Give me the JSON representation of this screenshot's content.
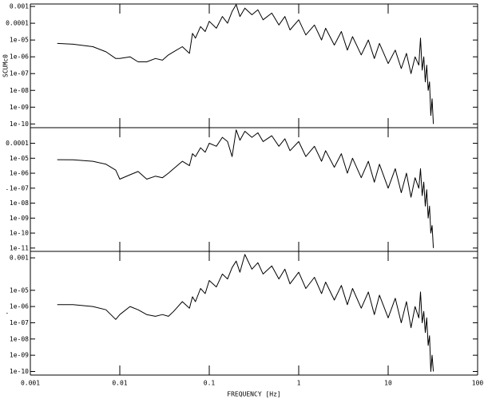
{
  "chart_data": [
    {
      "type": "line",
      "ylabel": "SCUMc0",
      "log_x": true,
      "log_y": true,
      "xlim": [
        0.001,
        100
      ],
      "xticks": [
        0.001,
        0.01,
        0.1,
        1,
        10,
        100
      ],
      "ylim": [
        6e-11,
        0.0014
      ],
      "yticks": [
        0.001,
        0.0001,
        {
          "value": 1e-05,
          "label": "1e-05"
        },
        {
          "value": 1e-06,
          "label": "1e-06"
        },
        {
          "value": 1e-07,
          "label": "1e-07"
        },
        {
          "value": 1e-08,
          "label": "1e-08"
        },
        {
          "value": 1e-09,
          "label": "1e-09"
        },
        {
          "value": 1e-10,
          "label": "1e-10"
        }
      ],
      "x": [
        0.002,
        0.003,
        0.005,
        0.007,
        0.009,
        0.01,
        0.013,
        0.016,
        0.02,
        0.025,
        0.03,
        0.035,
        0.04,
        0.05,
        0.06,
        0.065,
        0.07,
        0.08,
        0.09,
        0.1,
        0.12,
        0.14,
        0.16,
        0.18,
        0.2,
        0.22,
        0.25,
        0.3,
        0.35,
        0.4,
        0.5,
        0.6,
        0.7,
        0.8,
        1,
        1.2,
        1.5,
        1.8,
        2,
        2.5,
        3,
        3.5,
        4,
        5,
        6,
        7,
        8,
        10,
        12,
        14,
        16,
        18,
        20,
        22,
        23,
        24,
        25,
        26,
        27,
        28,
        29,
        30,
        31,
        32
      ],
      "series": [
        {
          "color": "#000000",
          "values": [
            6.3e-06,
            5.6e-06,
            4e-06,
            2e-06,
            7.9e-07,
            7.9e-07,
            1e-06,
            5e-07,
            5e-07,
            7.9e-07,
            6.3e-07,
            1.3e-06,
            2e-06,
            4e-06,
            1.6e-06,
            2.5e-05,
            1.3e-05,
            6.3e-05,
            3.2e-05,
            0.00013,
            5e-05,
            0.00025,
            0.0001,
            0.0005,
            0.0013,
            0.00025,
            0.00079,
            0.00032,
            0.00063,
            0.00016,
            0.0004,
            7.9e-05,
            0.00025,
            4e-05,
            0.00016,
            2e-05,
            7.9e-05,
            1e-05,
            5e-05,
            5e-06,
            3.2e-05,
            2.5e-06,
            1.6e-05,
            1.3e-06,
            1e-05,
            7.9e-07,
            6.3e-06,
            4e-07,
            2.5e-06,
            2e-07,
            1.6e-06,
            1e-07,
            1e-06,
            3.2e-07,
            1.3e-05,
            1.6e-07,
            1e-06,
            3.2e-08,
            3.2e-07,
            1e-08,
            3.2e-08,
            3.2e-10,
            3.2e-09,
            1e-10
          ]
        }
      ]
    },
    {
      "type": "line",
      "ylabel": ".",
      "log_x": true,
      "log_y": true,
      "xlim": [
        0.001,
        100
      ],
      "xticks": [
        0.001,
        0.01,
        0.1,
        1,
        10,
        100
      ],
      "ylim": [
        6e-12,
        0.0011
      ],
      "yticks": [
        0.0001,
        {
          "value": 1e-05,
          "label": "1e-05"
        },
        {
          "value": 1e-06,
          "label": "1e-06"
        },
        {
          "value": 1e-07,
          "label": "1e-07"
        },
        {
          "value": 1e-08,
          "label": "1e-08"
        },
        {
          "value": 1e-09,
          "label": "1e-09"
        },
        {
          "value": 1e-10,
          "label": "1e-10"
        },
        {
          "value": 1e-11,
          "label": "1e-11"
        }
      ],
      "x": [
        0.002,
        0.003,
        0.005,
        0.007,
        0.009,
        0.01,
        0.013,
        0.016,
        0.02,
        0.025,
        0.03,
        0.035,
        0.04,
        0.05,
        0.06,
        0.065,
        0.07,
        0.08,
        0.09,
        0.1,
        0.12,
        0.14,
        0.16,
        0.18,
        0.2,
        0.22,
        0.25,
        0.3,
        0.35,
        0.4,
        0.5,
        0.6,
        0.7,
        0.8,
        1,
        1.2,
        1.5,
        1.8,
        2,
        2.5,
        3,
        3.5,
        4,
        5,
        6,
        7,
        8,
        10,
        12,
        14,
        16,
        18,
        20,
        22,
        23,
        24,
        25,
        26,
        27,
        28,
        29,
        30,
        31,
        32
      ],
      "series": [
        {
          "color": "#000000",
          "values": [
            8e-06,
            7.9e-06,
            6.3e-06,
            4e-06,
            1.6e-06,
            4e-07,
            7.9e-07,
            1.3e-06,
            4e-07,
            6.3e-07,
            5e-07,
            1e-06,
            2e-06,
            6.3e-06,
            3.2e-06,
            2e-05,
            1.3e-05,
            5e-05,
            2.5e-05,
            0.0001,
            6.3e-05,
            0.00025,
            0.00013,
            1.3e-05,
            0.00079,
            0.00016,
            0.00063,
            0.00025,
            0.0005,
            0.00013,
            0.00032,
            6.3e-05,
            0.0002,
            3.2e-05,
            0.00013,
            1.3e-05,
            6.3e-05,
            6.3e-06,
            3.2e-05,
            2.5e-06,
            2e-05,
            1e-06,
            1e-05,
            5e-07,
            6.3e-06,
            2.5e-07,
            4e-06,
            1e-07,
            2e-06,
            5e-08,
            1e-06,
            2.5e-08,
            5e-07,
            1e-07,
            2e-06,
            3.2e-08,
            2.5e-07,
            6.3e-09,
            7.9e-08,
            1e-09,
            6.3e-09,
            1e-10,
            3.2e-10,
            1e-11
          ]
        }
      ]
    },
    {
      "type": "line",
      "ylabel": ".",
      "xlabel": "FREQUENCY [Hz]",
      "log_x": true,
      "log_y": true,
      "xlim": [
        0.001,
        100
      ],
      "xticks": [
        0.001,
        0.01,
        0.1,
        1,
        10,
        100
      ],
      "ylim": [
        6e-11,
        0.0025
      ],
      "yticks": [
        0.001,
        {
          "value": 1e-05,
          "label": "1e-05"
        },
        {
          "value": 1e-06,
          "label": "1e-06"
        },
        {
          "value": 1e-07,
          "label": "1e-07"
        },
        {
          "value": 1e-08,
          "label": "1e-08"
        },
        {
          "value": 1e-09,
          "label": "1e-09"
        },
        {
          "value": 1e-10,
          "label": "1e-10"
        }
      ],
      "x": [
        0.002,
        0.003,
        0.005,
        0.007,
        0.009,
        0.01,
        0.013,
        0.016,
        0.02,
        0.025,
        0.03,
        0.035,
        0.04,
        0.05,
        0.06,
        0.065,
        0.07,
        0.08,
        0.09,
        0.1,
        0.12,
        0.14,
        0.16,
        0.18,
        0.2,
        0.22,
        0.25,
        0.3,
        0.35,
        0.4,
        0.5,
        0.6,
        0.7,
        0.8,
        1,
        1.2,
        1.5,
        1.8,
        2,
        2.5,
        3,
        3.5,
        4,
        5,
        6,
        7,
        8,
        10,
        12,
        14,
        16,
        18,
        20,
        22,
        23,
        24,
        25,
        26,
        27,
        28,
        29,
        30,
        31,
        32
      ],
      "series": [
        {
          "color": "#000000",
          "values": [
            1.3e-06,
            1.3e-06,
            1e-06,
            6.3e-07,
            1.6e-07,
            3.2e-07,
            1e-06,
            6.3e-07,
            3.2e-07,
            2.5e-07,
            3.2e-07,
            2.5e-07,
            5e-07,
            2e-06,
            7.9e-07,
            4e-06,
            2e-06,
            1.3e-05,
            6.3e-06,
            4e-05,
            1.6e-05,
            0.0001,
            5e-05,
            0.00025,
            0.00063,
            0.00013,
            0.0016,
            0.0002,
            0.0005,
            0.0001,
            0.00032,
            5e-05,
            0.0002,
            2.5e-05,
            0.00013,
            1.3e-05,
            6.3e-05,
            6.3e-06,
            3.2e-05,
            2.5e-06,
            2e-05,
            1.3e-06,
            1.3e-05,
            7.9e-07,
            7.9e-06,
            3.2e-07,
            5e-06,
            2e-07,
            3.2e-06,
            1e-07,
            2e-06,
            5e-08,
            1e-06,
            2e-07,
            7.9e-06,
            1e-07,
            5e-07,
            2.5e-08,
            2e-07,
            4e-09,
            1.6e-08,
            1e-10,
            1e-09,
            1e-10
          ]
        }
      ]
    }
  ]
}
